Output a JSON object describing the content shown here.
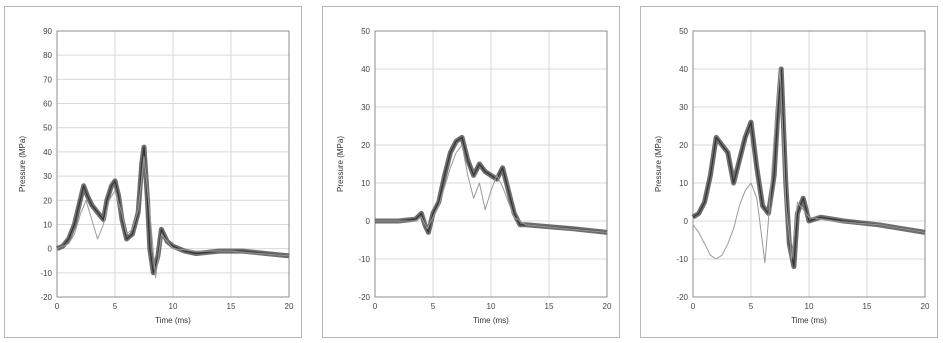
{
  "chart_data": [
    {
      "type": "line",
      "xlabel": "Time (ms)",
      "ylabel": "Pressure (MPa)",
      "xlim": [
        0,
        20
      ],
      "ylim": [
        -20,
        90
      ],
      "xticks": [
        0,
        5,
        10,
        15,
        20
      ],
      "yticks": [
        90,
        80,
        70,
        60,
        50,
        40,
        30,
        20,
        10,
        0,
        -10,
        -20
      ],
      "grid": true,
      "series": [
        {
          "color": "#555555",
          "band": true,
          "x": [
            0,
            0.5,
            1,
            1.5,
            2,
            2.3,
            2.6,
            3,
            3.5,
            4,
            4.3,
            4.7,
            5,
            5.3,
            5.6,
            6,
            6.5,
            7,
            7.3,
            7.5,
            7.8,
            8,
            8.3,
            8.7,
            9,
            9.5,
            10,
            11,
            12,
            14,
            16,
            18,
            20
          ],
          "y": [
            0,
            1,
            4,
            10,
            20,
            26,
            22,
            18,
            15,
            12,
            20,
            26,
            28,
            22,
            12,
            4,
            6,
            15,
            35,
            42,
            20,
            0,
            -10,
            -3,
            8,
            3,
            1,
            -1,
            -2,
            -1,
            -1,
            -2,
            -3
          ]
        },
        {
          "color": "#9a9a9a",
          "band": false,
          "x": [
            0,
            1,
            1.5,
            2,
            2.5,
            3,
            3.5,
            4,
            4.5,
            5,
            5.5,
            6,
            6.5,
            7,
            7.5,
            8,
            8.5,
            9,
            10,
            12,
            15,
            20
          ],
          "y": [
            0,
            2,
            6,
            14,
            20,
            12,
            4,
            10,
            20,
            24,
            16,
            6,
            8,
            16,
            38,
            15,
            -12,
            6,
            0,
            -1,
            -1,
            -3
          ]
        }
      ]
    },
    {
      "type": "line",
      "xlabel": "Time (ms)",
      "ylabel": "Pressure (MPa)",
      "xlim": [
        0,
        20
      ],
      "ylim": [
        -20,
        50
      ],
      "xticks": [
        0,
        5,
        10,
        15,
        20
      ],
      "yticks": [
        50,
        40,
        30,
        20,
        10,
        0,
        -10,
        -20
      ],
      "grid": true,
      "series": [
        {
          "color": "#555555",
          "band": true,
          "x": [
            0,
            2,
            3.5,
            4,
            4.3,
            4.6,
            5,
            5.5,
            6,
            6.5,
            7,
            7.5,
            8,
            8.5,
            9,
            9.5,
            10,
            10.5,
            11,
            11.5,
            12,
            12.5,
            13,
            15,
            17,
            20
          ],
          "y": [
            0,
            0,
            0.5,
            2,
            -1,
            -3,
            2,
            5,
            12,
            18,
            21,
            22,
            16,
            12,
            15,
            13,
            12,
            11,
            14,
            8,
            2,
            -1,
            -1,
            -1.5,
            -2,
            -3
          ]
        },
        {
          "color": "#9a9a9a",
          "band": false,
          "x": [
            0,
            3.5,
            4,
            4.5,
            5,
            5.5,
            6,
            6.5,
            7,
            7.5,
            8,
            8.5,
            9,
            9.5,
            10,
            10.5,
            11,
            12,
            13,
            20
          ],
          "y": [
            0,
            0,
            1,
            -2,
            1,
            4,
            9,
            14,
            18,
            20,
            12,
            6,
            10,
            3,
            8,
            12,
            9,
            1,
            -1,
            -3
          ]
        }
      ]
    },
    {
      "type": "line",
      "xlabel": "Time (ms)",
      "ylabel": "Pressure (MPa)",
      "xlim": [
        0,
        20
      ],
      "ylim": [
        -20,
        50
      ],
      "xticks": [
        0,
        5,
        10,
        15,
        20
      ],
      "yticks": [
        50,
        40,
        30,
        20,
        10,
        0,
        -10,
        -20
      ],
      "grid": true,
      "series": [
        {
          "color": "#555555",
          "band": true,
          "x": [
            0,
            0.5,
            1,
            1.5,
            2,
            2.5,
            3,
            3.5,
            4,
            4.5,
            5,
            5.5,
            6,
            6.5,
            7,
            7.3,
            7.6,
            8,
            8.3,
            8.7,
            9,
            9.5,
            10,
            11,
            13,
            16,
            20
          ],
          "y": [
            1,
            2,
            5,
            12,
            22,
            20,
            18,
            10,
            16,
            22,
            26,
            14,
            4,
            2,
            12,
            28,
            40,
            10,
            -6,
            -12,
            2,
            6,
            0,
            1,
            0,
            -1,
            -3
          ]
        },
        {
          "color": "#9a9a9a",
          "band": false,
          "x": [
            0,
            0.5,
            1,
            1.5,
            2,
            2.5,
            3,
            3.5,
            4,
            4.5,
            5,
            5.5,
            6,
            6.2,
            6.5,
            7,
            7.5,
            8,
            8.5,
            9,
            10,
            12,
            16,
            20
          ],
          "y": [
            -1,
            -3,
            -6,
            -9,
            -10,
            -9,
            -6,
            -2,
            4,
            8,
            10,
            6,
            -6,
            -11,
            0,
            22,
            40,
            5,
            -10,
            5,
            1,
            0,
            -1,
            -3
          ]
        }
      ]
    }
  ]
}
